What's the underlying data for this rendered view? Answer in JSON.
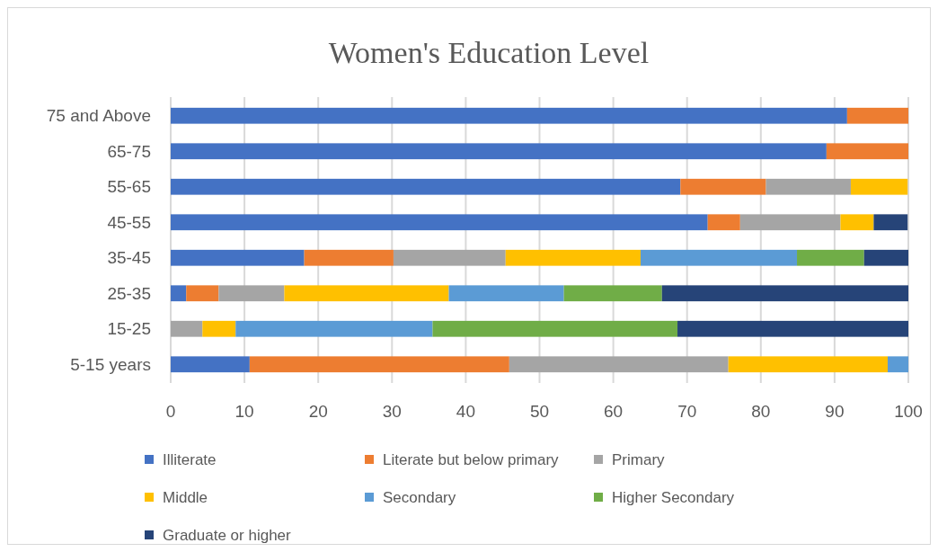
{
  "chart_data": {
    "type": "bar",
    "title": "Women's Education Level",
    "orientation": "horizontal",
    "stacked": true,
    "categories": [
      "75 and Above",
      "65-75",
      "55-65",
      "45-55",
      "35-45",
      "25-35",
      "15-25",
      "5-15 years"
    ],
    "series": [
      {
        "name": "Illiterate",
        "color": "#4472c4",
        "values": [
          91.7,
          88.9,
          69.1,
          72.8,
          18.1,
          2.1,
          0,
          10.7
        ]
      },
      {
        "name": "Literate but below primary",
        "color": "#ed7d31",
        "values": [
          8.3,
          11.1,
          11.6,
          4.4,
          12.1,
          4.4,
          0,
          35.2
        ]
      },
      {
        "name": "Primary",
        "color": "#a5a5a5",
        "values": [
          0,
          0,
          11.5,
          13.6,
          15.2,
          8.9,
          4.3,
          29.7
        ]
      },
      {
        "name": "Middle",
        "color": "#ffc000",
        "values": [
          0,
          0,
          7.7,
          4.5,
          18.3,
          22.3,
          4.5,
          21.6
        ]
      },
      {
        "name": "Secondary",
        "color": "#5b9bd5",
        "values": [
          0,
          0,
          0,
          0,
          21.2,
          15.6,
          26.7,
          2.8
        ]
      },
      {
        "name": "Higher Secondary",
        "color": "#70ad47",
        "values": [
          0,
          0,
          0,
          0,
          9.1,
          13.3,
          33.2,
          0
        ]
      },
      {
        "name": "Graduate or higher",
        "color": "#264478",
        "values": [
          0,
          0,
          0,
          4.6,
          6.0,
          33.4,
          31.3,
          0
        ]
      }
    ],
    "xlim": [
      0,
      100
    ],
    "xticks": [
      0,
      10,
      20,
      30,
      40,
      50,
      60,
      70,
      80,
      90,
      100
    ],
    "grid": "x",
    "legend": "bottom"
  }
}
